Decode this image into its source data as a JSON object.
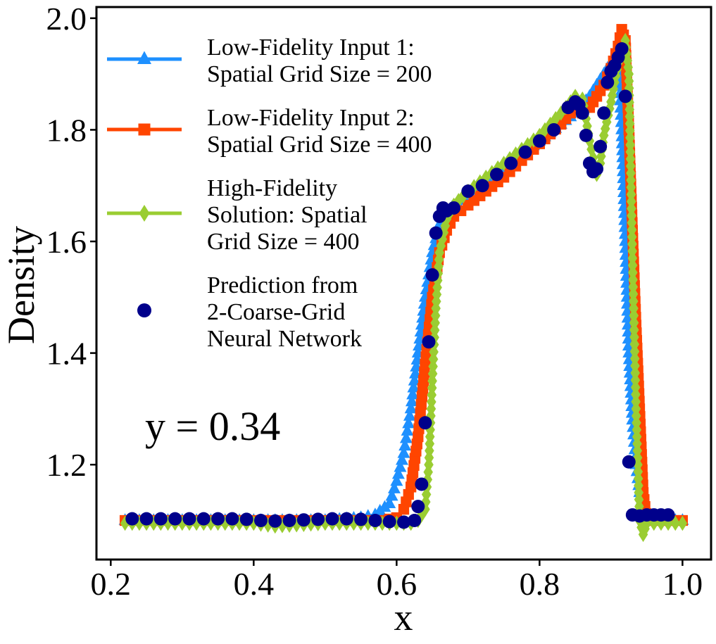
{
  "chart_data": {
    "type": "line",
    "xlabel": "x",
    "ylabel": "Density",
    "xlim": [
      0.18,
      1.04
    ],
    "ylim": [
      1.03,
      2.02
    ],
    "xticks": [
      "0.2",
      "0.4",
      "0.6",
      "0.8",
      "1.0"
    ],
    "xtick_values": [
      0.2,
      0.4,
      0.6,
      0.8,
      1.0
    ],
    "yticks": [
      "1.2",
      "1.4",
      "1.6",
      "1.8",
      "2.0"
    ],
    "ytick_values": [
      1.2,
      1.4,
      1.6,
      1.8,
      2.0
    ],
    "annotation": "y = 0.34",
    "legend_position": "upper-left",
    "series": [
      {
        "name": "Low-Fidelity Input 1: Spatial Grid Size = 200",
        "legend_lines": [
          "Low-Fidelity Input 1:",
          "Spatial Grid Size = 200"
        ],
        "color": "#1E90FF",
        "marker": "triangle",
        "points": [
          [
            0.22,
            1.1
          ],
          [
            0.3,
            1.1
          ],
          [
            0.4,
            1.1
          ],
          [
            0.5,
            1.1
          ],
          [
            0.55,
            1.105
          ],
          [
            0.57,
            1.11
          ],
          [
            0.59,
            1.13
          ],
          [
            0.6,
            1.17
          ],
          [
            0.61,
            1.22
          ],
          [
            0.62,
            1.3
          ],
          [
            0.63,
            1.4
          ],
          [
            0.64,
            1.5
          ],
          [
            0.65,
            1.58
          ],
          [
            0.66,
            1.63
          ],
          [
            0.67,
            1.655
          ],
          [
            0.7,
            1.68
          ],
          [
            0.75,
            1.73
          ],
          [
            0.8,
            1.78
          ],
          [
            0.83,
            1.81
          ],
          [
            0.85,
            1.83
          ],
          [
            0.86,
            1.845
          ],
          [
            0.87,
            1.86
          ],
          [
            0.88,
            1.88
          ],
          [
            0.89,
            1.9
          ],
          [
            0.9,
            1.92
          ],
          [
            0.91,
            1.93
          ],
          [
            0.915,
            1.8
          ],
          [
            0.92,
            1.6
          ],
          [
            0.925,
            1.4
          ],
          [
            0.93,
            1.28
          ],
          [
            0.935,
            1.2
          ],
          [
            0.94,
            1.15
          ],
          [
            0.95,
            1.11
          ],
          [
            0.96,
            1.1
          ],
          [
            1.0,
            1.1
          ]
        ]
      },
      {
        "name": "Low-Fidelity Input 2: Spatial Grid Size = 400",
        "legend_lines": [
          "Low-Fidelity Input 2:",
          "Spatial Grid Size = 400"
        ],
        "color": "#FF4500",
        "marker": "square",
        "points": [
          [
            0.22,
            1.1
          ],
          [
            0.3,
            1.1
          ],
          [
            0.4,
            1.1
          ],
          [
            0.5,
            1.1
          ],
          [
            0.58,
            1.1
          ],
          [
            0.6,
            1.105
          ],
          [
            0.61,
            1.12
          ],
          [
            0.62,
            1.16
          ],
          [
            0.63,
            1.25
          ],
          [
            0.64,
            1.38
          ],
          [
            0.65,
            1.5
          ],
          [
            0.66,
            1.58
          ],
          [
            0.67,
            1.62
          ],
          [
            0.68,
            1.645
          ],
          [
            0.7,
            1.665
          ],
          [
            0.75,
            1.715
          ],
          [
            0.8,
            1.775
          ],
          [
            0.83,
            1.81
          ],
          [
            0.85,
            1.84
          ],
          [
            0.86,
            1.83
          ],
          [
            0.87,
            1.84
          ],
          [
            0.88,
            1.86
          ],
          [
            0.89,
            1.88
          ],
          [
            0.9,
            1.91
          ],
          [
            0.91,
            1.95
          ],
          [
            0.915,
            1.98
          ],
          [
            0.92,
            1.96
          ],
          [
            0.925,
            1.8
          ],
          [
            0.93,
            1.62
          ],
          [
            0.935,
            1.45
          ],
          [
            0.94,
            1.3
          ],
          [
            0.945,
            1.15
          ],
          [
            0.95,
            1.1
          ],
          [
            1.0,
            1.1
          ]
        ]
      },
      {
        "name": "High-Fidelity Solution: Spatial Grid Size = 400",
        "legend_lines": [
          "High-Fidelity",
          "Solution: Spatial",
          "Grid Size = 400"
        ],
        "color": "#9ACD32",
        "marker": "diamond",
        "points": [
          [
            0.22,
            1.095
          ],
          [
            0.3,
            1.095
          ],
          [
            0.4,
            1.095
          ],
          [
            0.43,
            1.09
          ],
          [
            0.5,
            1.095
          ],
          [
            0.58,
            1.095
          ],
          [
            0.62,
            1.095
          ],
          [
            0.63,
            1.1
          ],
          [
            0.64,
            1.12
          ],
          [
            0.645,
            1.2
          ],
          [
            0.65,
            1.35
          ],
          [
            0.655,
            1.48
          ],
          [
            0.66,
            1.58
          ],
          [
            0.67,
            1.64
          ],
          [
            0.68,
            1.665
          ],
          [
            0.7,
            1.69
          ],
          [
            0.75,
            1.74
          ],
          [
            0.8,
            1.79
          ],
          [
            0.83,
            1.83
          ],
          [
            0.85,
            1.86
          ],
          [
            0.86,
            1.855
          ],
          [
            0.865,
            1.82
          ],
          [
            0.87,
            1.78
          ],
          [
            0.875,
            1.75
          ],
          [
            0.88,
            1.72
          ],
          [
            0.885,
            1.74
          ],
          [
            0.89,
            1.79
          ],
          [
            0.9,
            1.85
          ],
          [
            0.91,
            1.92
          ],
          [
            0.92,
            1.96
          ],
          [
            0.925,
            1.9
          ],
          [
            0.93,
            1.57
          ],
          [
            0.935,
            1.3
          ],
          [
            0.94,
            1.1
          ],
          [
            0.945,
            1.075
          ],
          [
            0.95,
            1.095
          ],
          [
            1.0,
            1.095
          ]
        ]
      },
      {
        "name": "Prediction from 2-Coarse-Grid Neural Network",
        "legend_lines": [
          "Prediction from",
          "2-Coarse-Grid",
          "Neural Network"
        ],
        "color": "#00008B",
        "marker": "circle",
        "points": [
          [
            0.23,
            1.103
          ],
          [
            0.25,
            1.103
          ],
          [
            0.27,
            1.103
          ],
          [
            0.29,
            1.103
          ],
          [
            0.31,
            1.103
          ],
          [
            0.33,
            1.103
          ],
          [
            0.35,
            1.103
          ],
          [
            0.37,
            1.103
          ],
          [
            0.39,
            1.102
          ],
          [
            0.41,
            1.1
          ],
          [
            0.43,
            1.099
          ],
          [
            0.45,
            1.1
          ],
          [
            0.47,
            1.101
          ],
          [
            0.49,
            1.102
          ],
          [
            0.51,
            1.103
          ],
          [
            0.53,
            1.103
          ],
          [
            0.55,
            1.102
          ],
          [
            0.57,
            1.1
          ],
          [
            0.59,
            1.098
          ],
          [
            0.61,
            1.097
          ],
          [
            0.625,
            1.1
          ],
          [
            0.63,
            1.125
          ],
          [
            0.635,
            1.165
          ],
          [
            0.64,
            1.275
          ],
          [
            0.645,
            1.42
          ],
          [
            0.65,
            1.54
          ],
          [
            0.655,
            1.615
          ],
          [
            0.66,
            1.645
          ],
          [
            0.665,
            1.66
          ],
          [
            0.67,
            1.655
          ],
          [
            0.68,
            1.66
          ],
          [
            0.7,
            1.69
          ],
          [
            0.72,
            1.7
          ],
          [
            0.74,
            1.72
          ],
          [
            0.76,
            1.74
          ],
          [
            0.78,
            1.76
          ],
          [
            0.8,
            1.78
          ],
          [
            0.82,
            1.8
          ],
          [
            0.84,
            1.84
          ],
          [
            0.85,
            1.85
          ],
          [
            0.855,
            1.845
          ],
          [
            0.86,
            1.83
          ],
          [
            0.865,
            1.79
          ],
          [
            0.87,
            1.74
          ],
          [
            0.875,
            1.725
          ],
          [
            0.88,
            1.73
          ],
          [
            0.885,
            1.77
          ],
          [
            0.89,
            1.83
          ],
          [
            0.895,
            1.885
          ],
          [
            0.9,
            1.905
          ],
          [
            0.905,
            1.915
          ],
          [
            0.91,
            1.93
          ],
          [
            0.915,
            1.945
          ],
          [
            0.92,
            1.86
          ],
          [
            0.925,
            1.205
          ],
          [
            0.93,
            1.11
          ],
          [
            0.94,
            1.108
          ],
          [
            0.95,
            1.11
          ],
          [
            0.96,
            1.11
          ],
          [
            0.97,
            1.11
          ],
          [
            0.98,
            1.11
          ]
        ]
      }
    ]
  }
}
